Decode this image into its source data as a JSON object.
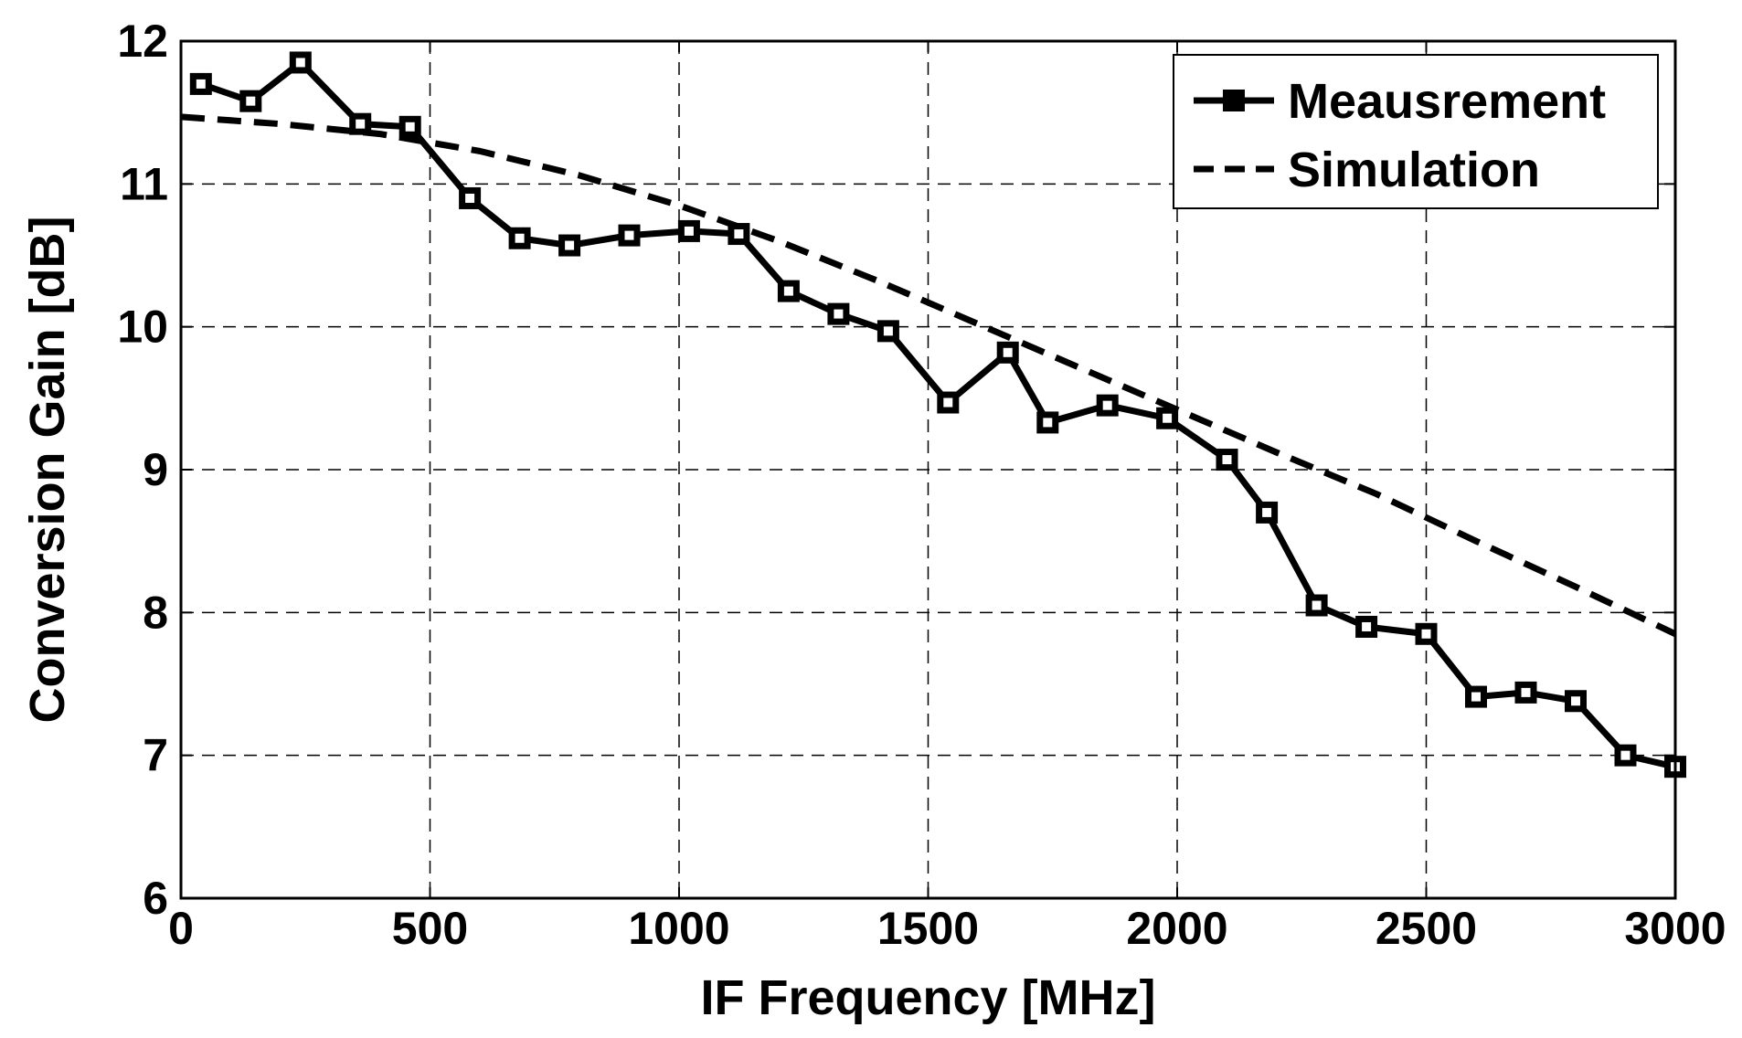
{
  "chart_data": {
    "type": "line",
    "title": "",
    "xlabel": "IF Frequency [MHz]",
    "ylabel": "Conversion Gain [dB]",
    "xlim": [
      0,
      3000
    ],
    "ylim": [
      6,
      12
    ],
    "xticks": [
      0,
      500,
      1000,
      1500,
      2000,
      2500,
      3000
    ],
    "yticks": [
      6,
      7,
      8,
      9,
      10,
      11,
      12
    ],
    "grid": true,
    "legend_position": "top-right",
    "series": [
      {
        "name": "Meausrement",
        "style": "solid-square-markers",
        "color": "#000000",
        "x": [
          40,
          140,
          240,
          360,
          460,
          580,
          680,
          780,
          900,
          1020,
          1120,
          1220,
          1320,
          1420,
          1540,
          1660,
          1740,
          1860,
          1980,
          2100,
          2180,
          2280,
          2380,
          2500,
          2600,
          2700,
          2800,
          2900,
          3000
        ],
        "y": [
          11.7,
          11.58,
          11.85,
          11.42,
          11.4,
          10.9,
          10.62,
          10.57,
          10.64,
          10.67,
          10.65,
          10.25,
          10.09,
          9.97,
          9.47,
          9.82,
          9.33,
          9.45,
          9.36,
          9.07,
          8.7,
          8.05,
          7.9,
          7.85,
          7.41,
          7.44,
          7.38,
          7.0,
          6.92
        ]
      },
      {
        "name": "Simulation",
        "style": "dashed",
        "color": "#000000",
        "x": [
          0,
          200,
          400,
          600,
          800,
          1000,
          1200,
          1400,
          1600,
          1800,
          2000,
          2200,
          2400,
          2600,
          2800,
          3000
        ],
        "y": [
          11.47,
          11.42,
          11.35,
          11.23,
          11.06,
          10.85,
          10.6,
          10.32,
          10.02,
          9.72,
          9.42,
          9.12,
          8.83,
          8.5,
          8.18,
          7.85
        ]
      }
    ]
  }
}
